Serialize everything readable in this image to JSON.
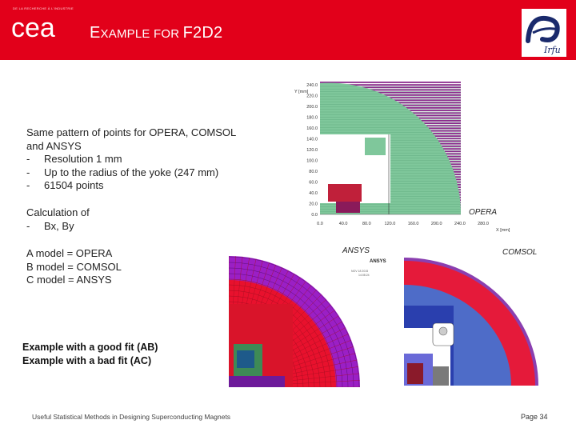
{
  "header": {
    "tagline": "DE LA RECHERCHE À L'INDUSTRIE",
    "logo_text": "cea",
    "title_e": "E",
    "title_rest": "XAMPLE FOR ",
    "title_tail": "F2D2",
    "right_logo": "Irfu",
    "brand_color": "#e2001a"
  },
  "block1": {
    "line1": "Same pattern of points for OPERA, COMSOL",
    "line2": "and ANSYS",
    "items": [
      "Resolution 1 mm",
      "Up to the radius of the yoke (247 mm)",
      "61504 points"
    ]
  },
  "block2": {
    "line1": "Calculation of",
    "items": [
      "Bx, By"
    ]
  },
  "block3": {
    "lines": [
      "A model = OPERA",
      "B model = COMSOL",
      "C model = ANSYS"
    ]
  },
  "fit": {
    "line1": "Example with a good fit (AB)",
    "line2": "Example with a bad fit (AC)"
  },
  "opera_plot": {
    "label": "OPERA",
    "y_axis_label": "Y [mm]",
    "x_axis_label": "X [mm]",
    "y_ticks": [
      "240.0",
      "220.0",
      "200.0",
      "180.0",
      "160.0",
      "140.0",
      "120.0",
      "100.0",
      "80.0",
      "60.0",
      "40.0",
      "20.0",
      "0.0"
    ],
    "x_ticks": [
      "0.0",
      "40.0",
      "80.0",
      "120.0",
      "160.0",
      "200.0",
      "240.0",
      "280.0"
    ]
  },
  "ansys": {
    "label": "ANSYS",
    "logo": "ANSYS",
    "date": "NOV 18 2015",
    "time": "14:08:24"
  },
  "comsol": {
    "label": "COMSOL"
  },
  "footer": {
    "left": "Useful Statistical Methods in Designing Superconducting Magnets",
    "page": "Page 34"
  }
}
